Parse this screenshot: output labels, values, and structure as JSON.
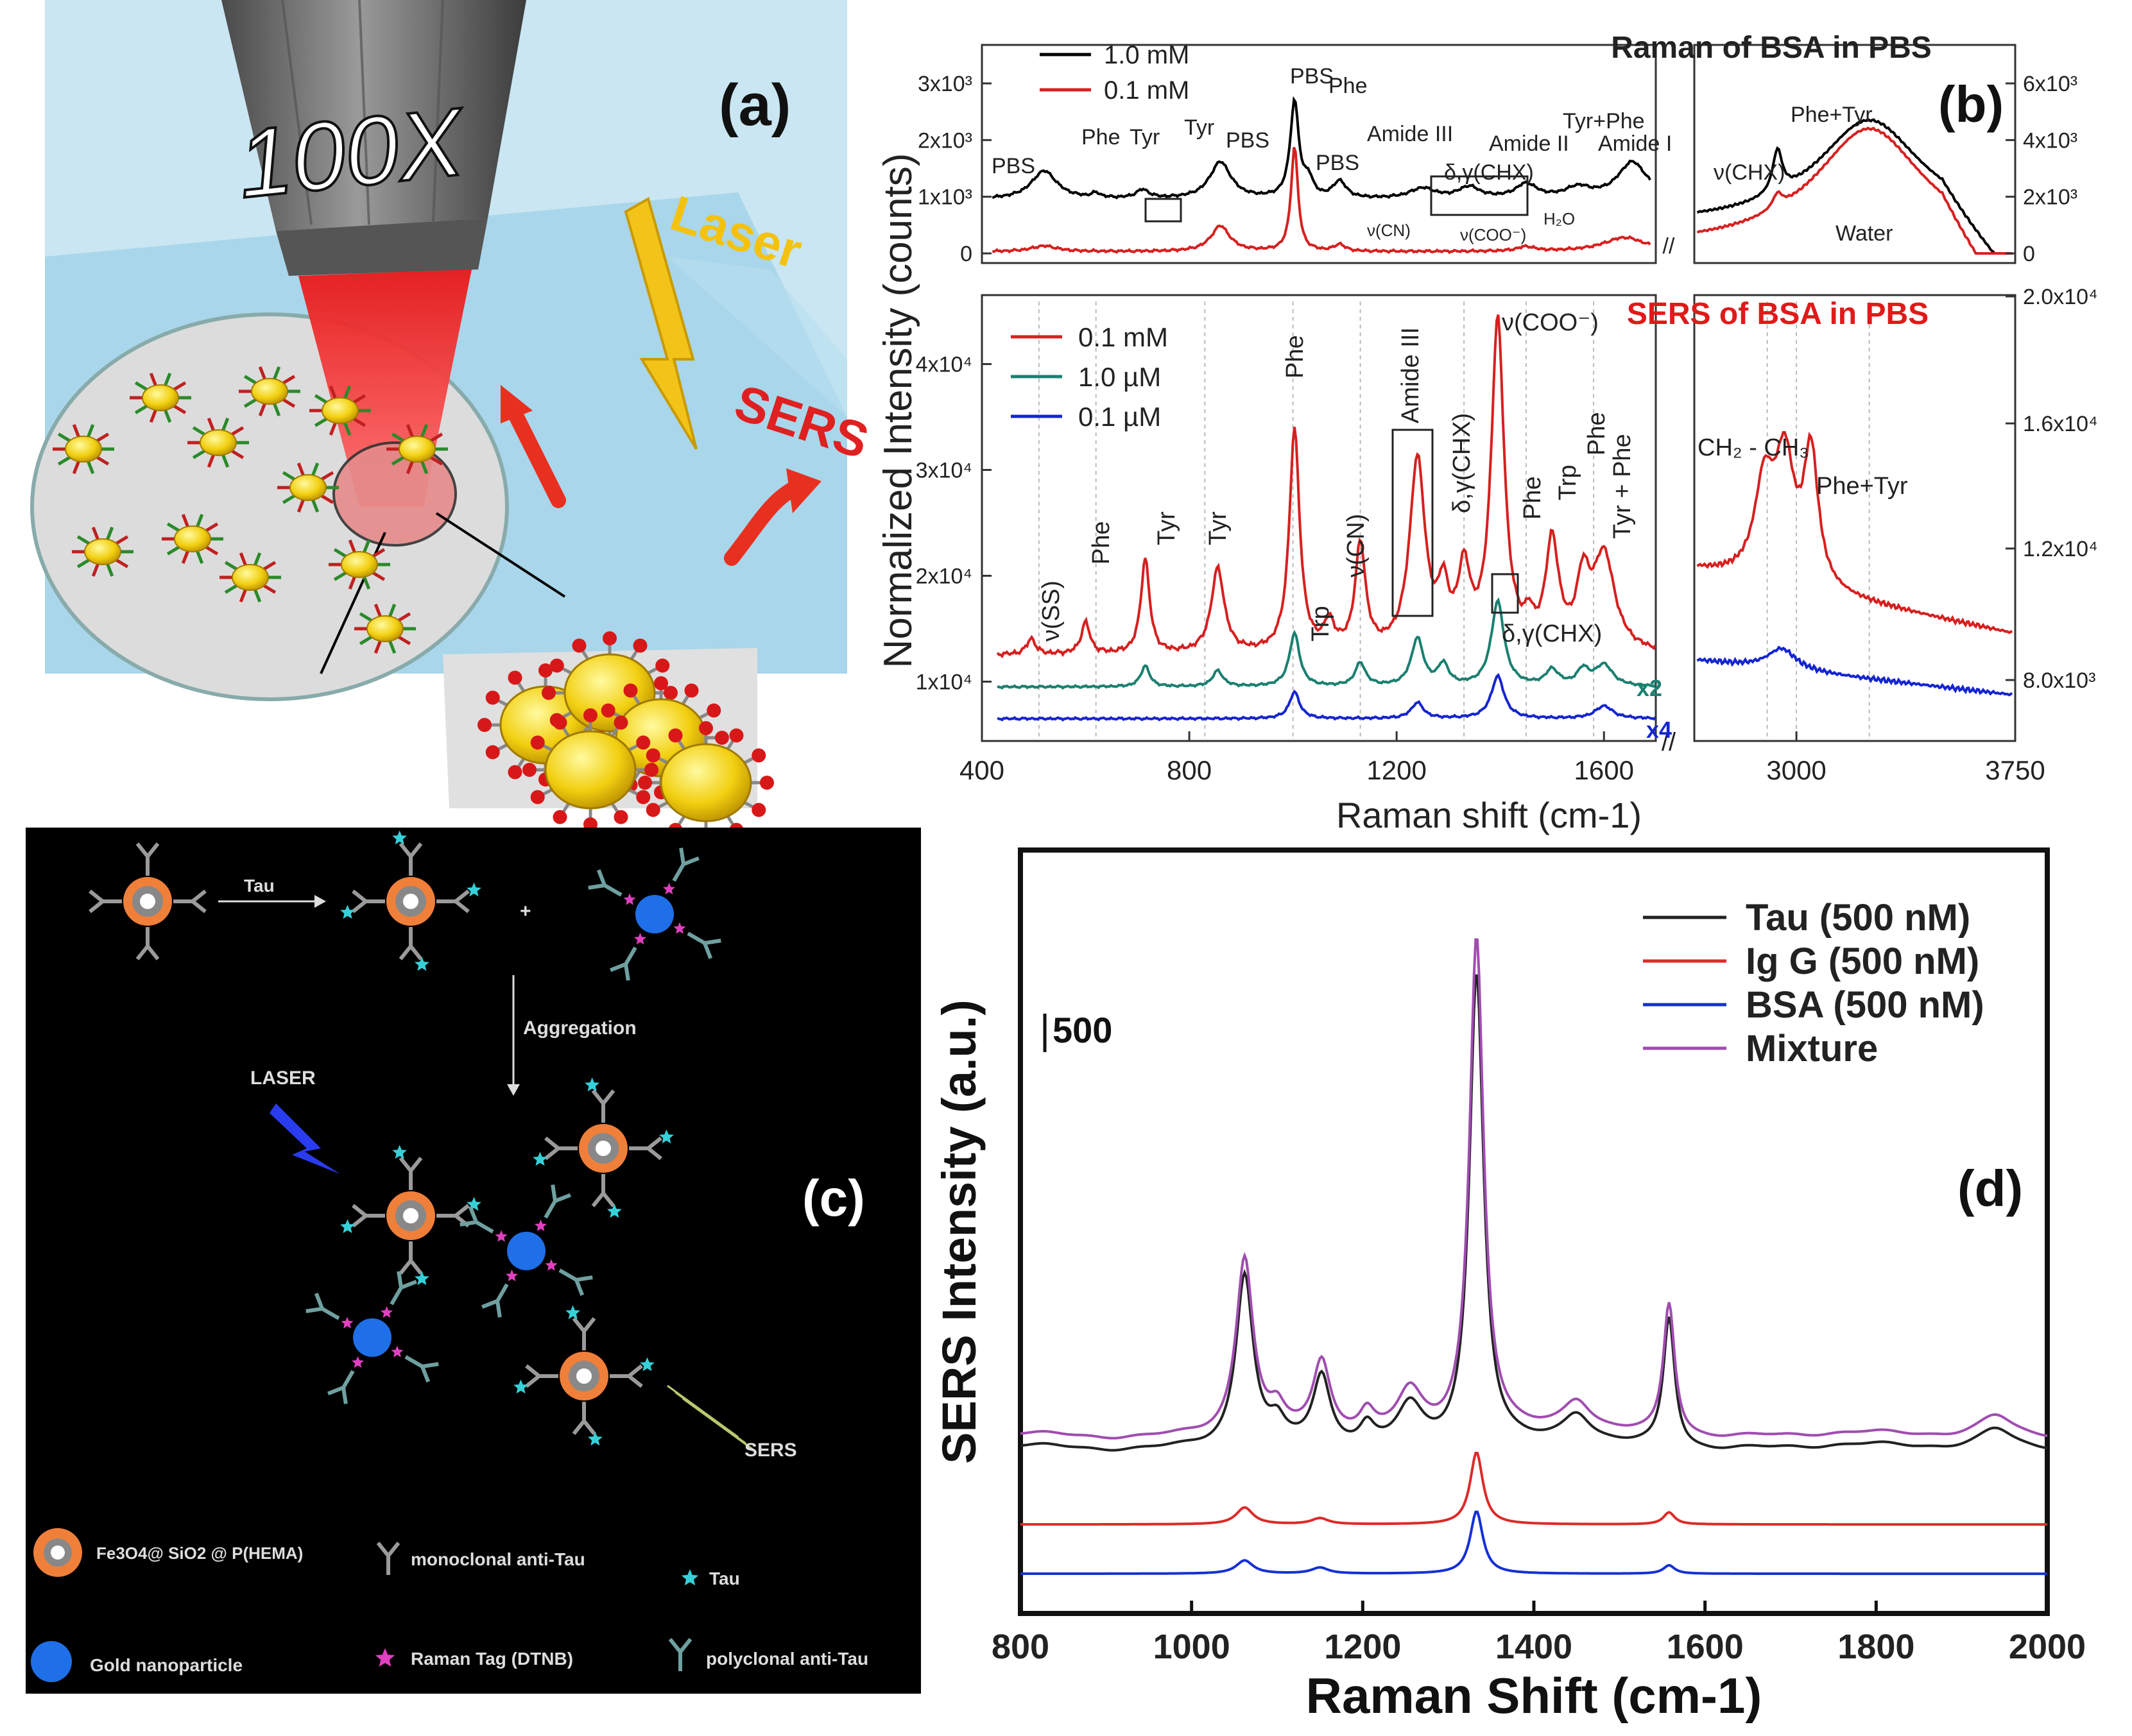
{
  "panels": {
    "a": {
      "label": "(a)",
      "objective": "100X",
      "laser": "Laser",
      "sers": "SERS"
    },
    "b": {
      "label": "(b)"
    },
    "c": {
      "label": "(c)",
      "step1": "Tau",
      "plus": "+",
      "step2": "Aggregation",
      "laser": "LASER",
      "sers": "SERS",
      "legend": {
        "fe3o4": "Fe3O4@ SiO2 @ P(HEMA)",
        "mono": "monoclonal anti-Tau",
        "tau": "Tau",
        "gold": "Gold nanoparticle",
        "tag": "Raman Tag (DTNB)",
        "poly": "polyclonal anti-Tau"
      },
      "colors": {
        "shell": "#f07f3a",
        "gold": "#1f6fe8",
        "tau": "#35d0d8",
        "tag": "#e040c0"
      }
    },
    "d": {
      "label": "(d)"
    }
  },
  "chart_data": [
    {
      "id": "b-top",
      "type": "line",
      "title": "Raman of BSA in PBS",
      "ylabel": "Normalized Intensity (counts)",
      "xlabel": "Raman shift (cm-1)",
      "left_ticks": [
        "0",
        "1x10³",
        "2x10³",
        "3x10³"
      ],
      "right_ticks": [
        "0",
        "2x10³",
        "4x10³",
        "6x10³"
      ],
      "series": [
        {
          "name": "1.0 mM",
          "color": "#000000",
          "peaks": [
            [
              520,
              500,
              30
            ],
            [
              620,
              80,
              10
            ],
            [
              710,
              150,
              15
            ],
            [
              860,
              650,
              25
            ],
            [
              1003,
              1700,
              10
            ],
            [
              1030,
              300,
              10
            ],
            [
              1090,
              300,
              15
            ],
            [
              1250,
              180,
              30
            ],
            [
              1340,
              200,
              25
            ],
            [
              1450,
              250,
              25
            ],
            [
              1550,
              180,
              30
            ],
            [
              1655,
              650,
              35
            ]
          ],
          "peaks_high": [
            [
              2935,
              1500,
              20
            ],
            [
              3250,
              3700,
              220
            ]
          ]
        },
        {
          "name": "0.1 mM",
          "color": "#d62020",
          "peaks": [
            [
              520,
              100,
              30
            ],
            [
              860,
              450,
              22
            ],
            [
              1003,
              1850,
              8
            ],
            [
              1090,
              120,
              12
            ],
            [
              1450,
              80,
              20
            ],
            [
              1640,
              250,
              50
            ]
          ],
          "peaks_high": [
            [
              2935,
              500,
              20
            ],
            [
              3250,
              4200,
              230
            ]
          ]
        }
      ],
      "annotations": [
        "PBS",
        "Phe",
        "Tyr",
        "Tyr",
        "PBS",
        "PBS",
        "Phe",
        "PBS",
        "Amide III",
        "δ,γ(CHX)",
        "Amide II",
        "Tyr+Phe",
        "Amide I",
        "ν(CN)",
        "ν(COO⁻)",
        "H₂O",
        "ν(CHX)",
        "Phe+Tyr",
        "Water"
      ]
    },
    {
      "id": "b-bottom",
      "type": "line",
      "title": "SERS of BSA in PBS",
      "xticks": [
        400,
        800,
        1200,
        1600,
        3000,
        3750
      ],
      "left_ticks": [
        "1x10⁴",
        "2x10⁴",
        "3x10⁴",
        "4x10⁴"
      ],
      "right_ticks": [
        "8.0x10³",
        "1.2x10⁴",
        "1.6x10⁴",
        "2.0x10⁴"
      ],
      "series": [
        {
          "name": "0.1 mM",
          "color": "#d62020",
          "scale": "",
          "peaks": [
            [
              495,
              1500,
              10
            ],
            [
              600,
              3000,
              10
            ],
            [
              715,
              9000,
              10
            ],
            [
              855,
              8000,
              15
            ],
            [
              1003,
              21000,
              12
            ],
            [
              1070,
              2500,
              12
            ],
            [
              1130,
              10000,
              12
            ],
            [
              1240,
              18000,
              18
            ],
            [
              1290,
              5000,
              12
            ],
            [
              1330,
              7000,
              14
            ],
            [
              1395,
              31000,
              15
            ],
            [
              1455,
              2000,
              10
            ],
            [
              1500,
              10000,
              15
            ],
            [
              1560,
              6000,
              15
            ],
            [
              1600,
              9000,
              25
            ]
          ],
          "peaks_high": [
            [
              2890,
              3500,
              40
            ],
            [
              2960,
              4500,
              40
            ],
            [
              3050,
              5000,
              30
            ]
          ]
        },
        {
          "name": "1.0 µM",
          "color": "#1a8070",
          "scale": "x2",
          "peaks": [
            [
              715,
              2000,
              10
            ],
            [
              855,
              1500,
              12
            ],
            [
              1003,
              5000,
              12
            ],
            [
              1130,
              2200,
              12
            ],
            [
              1240,
              4500,
              14
            ],
            [
              1290,
              2000,
              12
            ],
            [
              1395,
              8000,
              15
            ],
            [
              1500,
              1500,
              15
            ],
            [
              1560,
              1500,
              14
            ],
            [
              1600,
              2000,
              20
            ]
          ],
          "peaks_high": []
        },
        {
          "name": "0.1 µM",
          "color": "#1525d0",
          "scale": "x4",
          "peaks": [
            [
              1003,
              2500,
              12
            ],
            [
              1240,
              1500,
              14
            ],
            [
              1395,
              4000,
              15
            ],
            [
              1600,
              1200,
              20
            ]
          ],
          "peaks_high": [
            [
              2950,
              800,
              60
            ]
          ]
        }
      ],
      "annotations": [
        "ν(SS)",
        "Phe",
        "Tyr",
        "Tyr",
        "Phe",
        "Trp",
        "ν(CN)",
        "Amide III",
        "δ,γ(CHX)",
        "ν(COO⁻)",
        "Phe",
        "Trp",
        "Phe",
        "Tyr + Phe",
        "δ,γ(CHX)",
        "CH₂ - CH₃",
        "Phe+Tyr"
      ]
    },
    {
      "id": "d",
      "type": "line",
      "xlabel": "Raman Shift (cm-1)",
      "ylabel": "SERS Intensity (a.u.)",
      "xlim": [
        800,
        2000
      ],
      "xticks": [
        800,
        1000,
        1200,
        1400,
        1600,
        1800,
        2000
      ],
      "scalebar": "500",
      "series": [
        {
          "name": "Tau (500 nM)",
          "color": "#222222",
          "offset": 1380,
          "peaks": [
            [
              1062,
              1420,
              12
            ],
            [
              1100,
              140,
              10
            ],
            [
              1152,
              560,
              12
            ],
            [
              1205,
              160,
              10
            ],
            [
              1255,
              330,
              18
            ],
            [
              1333,
              3950,
              10
            ],
            [
              1450,
              250,
              20
            ],
            [
              1558,
              1080,
              8
            ],
            [
              1940,
              170,
              25
            ]
          ]
        },
        {
          "name": "Ig G (500 nM)",
          "color": "#dd2a2a",
          "offset": 740,
          "peaks": [
            [
              1062,
              140,
              12
            ],
            [
              1150,
              50,
              12
            ],
            [
              1333,
              600,
              9
            ],
            [
              1558,
              100,
              8
            ]
          ]
        },
        {
          "name": "BSA (500 nM)",
          "color": "#1530d6",
          "offset": 330,
          "peaks": [
            [
              1062,
              110,
              12
            ],
            [
              1150,
              50,
              12
            ],
            [
              1333,
              520,
              9
            ],
            [
              1558,
              70,
              8
            ]
          ]
        },
        {
          "name": "Mixture",
          "color": "#a04db0",
          "offset": 1480,
          "peaks": [
            [
              1062,
              1460,
              12
            ],
            [
              1100,
              150,
              10
            ],
            [
              1152,
              580,
              12
            ],
            [
              1205,
              170,
              10
            ],
            [
              1255,
              350,
              18
            ],
            [
              1333,
              4150,
              10
            ],
            [
              1450,
              260,
              20
            ],
            [
              1558,
              1100,
              8
            ],
            [
              1940,
              180,
              25
            ]
          ]
        }
      ]
    }
  ]
}
